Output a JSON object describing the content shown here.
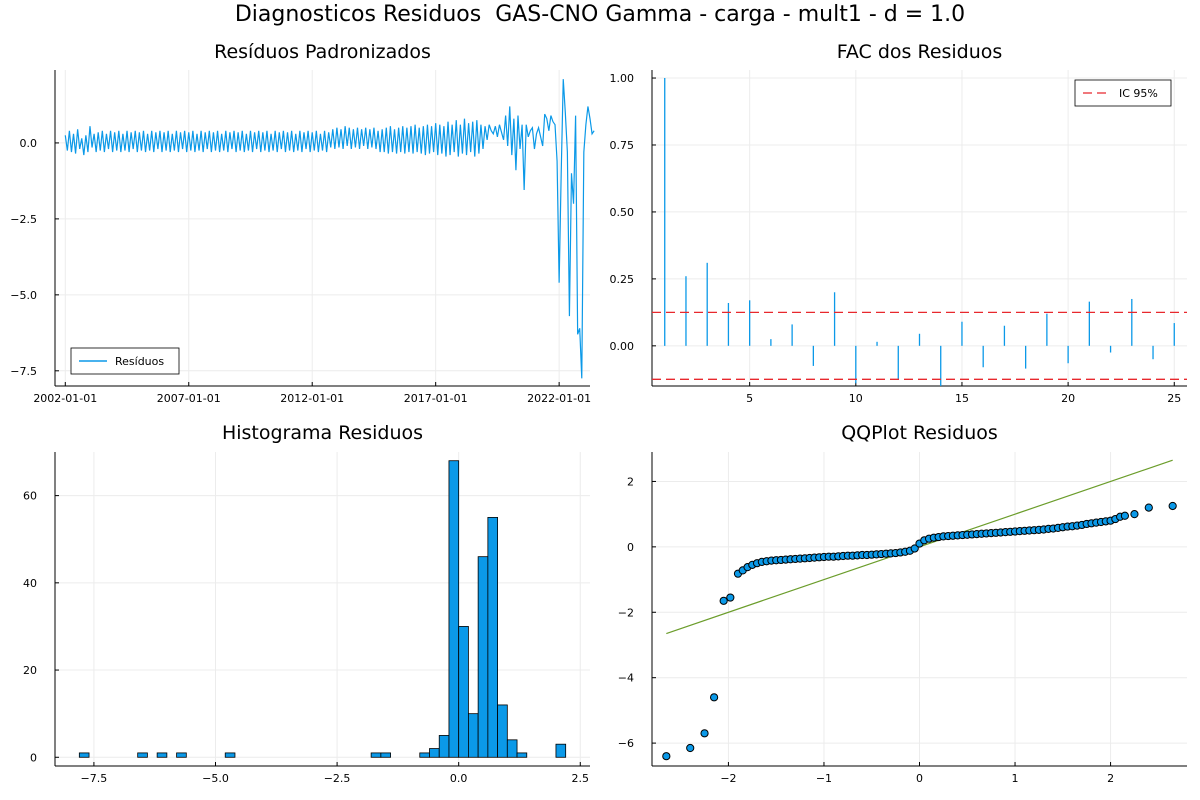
{
  "suptitle": "Diagnosticos Residuos  GAS-CNO Gamma - carga - mult1 - d = 1.0",
  "colors": {
    "series": "#0b99e8",
    "ic": "#e8282d",
    "qqline": "#6b9d2b",
    "grid": "#ececec",
    "axis": "#000000"
  },
  "chart_data": [
    {
      "id": "residuals",
      "type": "line",
      "title": "Resíduos Padronizados",
      "xlabel": "",
      "ylabel": "",
      "xlim": [
        "2001-08-01",
        "2023-04-01"
      ],
      "ylim": [
        -8,
        2.4
      ],
      "x_ticks": [
        "2002-01-01",
        "2007-01-01",
        "2012-01-01",
        "2017-01-01",
        "2022-01-01"
      ],
      "y_ticks": [
        -7.5,
        -5.0,
        -2.5,
        0.0
      ],
      "y_tick_labels": [
        "−7.5",
        "−5.0",
        "−2.5",
        "0.0"
      ],
      "legend": {
        "label": "Resíduos",
        "position": "bottom-left"
      },
      "grid": true,
      "series": [
        {
          "name": "Resíduos",
          "start": "2002-01-01",
          "frequency": "monthly",
          "values": [
            0.25,
            -0.25,
            0.4,
            -0.3,
            0.3,
            -0.35,
            0.45,
            -0.2,
            0.15,
            -0.4,
            0.25,
            -0.3,
            0.55,
            -0.15,
            0.3,
            -0.3,
            0.35,
            -0.25,
            0.4,
            -0.3,
            0.3,
            -0.2,
            0.4,
            -0.3,
            0.35,
            -0.25,
            0.4,
            -0.3,
            0.3,
            -0.25,
            0.4,
            -0.3,
            0.35,
            -0.2,
            0.4,
            -0.3,
            0.35,
            -0.25,
            0.4,
            -0.3,
            0.3,
            -0.25,
            0.4,
            -0.3,
            0.35,
            -0.2,
            0.4,
            -0.3,
            0.35,
            -0.25,
            0.4,
            -0.3,
            0.3,
            -0.25,
            0.4,
            -0.3,
            0.35,
            -0.2,
            0.4,
            -0.3,
            0.35,
            -0.25,
            0.4,
            -0.3,
            0.3,
            -0.25,
            0.4,
            -0.3,
            0.35,
            -0.2,
            0.4,
            -0.3,
            0.35,
            -0.25,
            0.4,
            -0.3,
            0.3,
            -0.25,
            0.4,
            -0.3,
            0.35,
            -0.2,
            0.4,
            -0.3,
            0.35,
            -0.25,
            0.4,
            -0.3,
            0.3,
            -0.25,
            0.4,
            -0.3,
            0.35,
            -0.2,
            0.4,
            -0.3,
            0.35,
            -0.25,
            0.4,
            -0.3,
            0.3,
            -0.25,
            0.4,
            -0.3,
            0.35,
            -0.2,
            0.4,
            -0.3,
            0.35,
            -0.25,
            0.4,
            -0.3,
            0.3,
            -0.25,
            0.4,
            -0.3,
            0.35,
            -0.2,
            0.4,
            -0.3,
            0.35,
            -0.25,
            0.4,
            -0.3,
            0.3,
            -0.25,
            0.4,
            -0.3,
            0.35,
            -0.15,
            0.45,
            -0.2,
            0.5,
            -0.15,
            0.45,
            -0.2,
            0.55,
            -0.1,
            0.5,
            -0.2,
            0.45,
            -0.15,
            0.5,
            -0.2,
            0.45,
            -0.1,
            0.5,
            -0.2,
            0.45,
            -0.15,
            0.5,
            -0.2,
            0.4,
            -0.3,
            0.45,
            -0.3,
            0.5,
            -0.35,
            0.55,
            -0.3,
            0.45,
            -0.35,
            0.5,
            -0.3,
            0.55,
            -0.35,
            0.5,
            -0.3,
            0.55,
            -0.35,
            0.6,
            -0.3,
            0.5,
            -0.35,
            0.55,
            -0.4,
            0.6,
            -0.35,
            0.55,
            -0.3,
            0.65,
            -0.4,
            0.6,
            -0.35,
            0.55,
            -0.45,
            0.7,
            -0.4,
            0.6,
            -0.3,
            0.75,
            -0.45,
            0.6,
            -0.35,
            0.8,
            -0.4,
            0.65,
            -0.3,
            0.7,
            -0.45,
            0.75,
            -0.35,
            0.6,
            -0.2,
            0.55,
            0.1,
            0.6,
            0.4,
            0.3,
            0.55,
            0.2,
            0.6,
            0.35,
            0.1,
            0.9,
            -0.1,
            1.2,
            -0.4,
            0.8,
            -0.9,
            0.9,
            -0.2,
            0.6,
            -1.55,
            0.6,
            0.2,
            0.4,
            0.5,
            -0.2,
            0.3,
            0.5,
            0.2,
            -0.1,
            0.95,
            0.8,
            0.4,
            0.9,
            0.7,
            0.6,
            -0.6,
            -4.6,
            -1.0,
            2.1,
            1.0,
            -0.3,
            -5.7,
            -1.0,
            -2.0,
            0.9,
            -6.3,
            -6.1,
            -7.75,
            -0.3,
            0.6,
            1.2,
            0.8,
            0.3,
            0.4
          ]
        }
      ]
    },
    {
      "id": "acf",
      "type": "bar",
      "title": "FAC dos Residuos",
      "xlabel": "",
      "ylabel": "",
      "xlim": [
        0.4,
        25.6
      ],
      "ylim": [
        -0.15,
        1.03
      ],
      "x_ticks": [
        5,
        10,
        15,
        20,
        25
      ],
      "y_ticks": [
        0.0,
        0.25,
        0.5,
        0.75,
        1.0
      ],
      "y_tick_labels": [
        "0.00",
        "0.25",
        "0.50",
        "0.75",
        "1.00"
      ],
      "legend": {
        "label": "IC 95%",
        "position": "top-right"
      },
      "grid": true,
      "lags": [
        1,
        2,
        3,
        4,
        5,
        6,
        7,
        8,
        9,
        10,
        11,
        12,
        13,
        14,
        15,
        16,
        17,
        18,
        19,
        20,
        21,
        22,
        23,
        24,
        25
      ],
      "values": [
        1.0,
        0.26,
        0.31,
        0.16,
        0.17,
        0.025,
        0.08,
        -0.075,
        0.2,
        -0.14,
        0.015,
        -0.125,
        0.045,
        -0.15,
        0.09,
        -0.08,
        0.075,
        -0.085,
        0.12,
        -0.065,
        0.165,
        -0.025,
        0.175,
        -0.05,
        0.085
      ],
      "ci": 0.125
    },
    {
      "id": "histogram",
      "type": "bar",
      "title": "Histograma Residuos",
      "xlabel": "",
      "ylabel": "",
      "xlim": [
        -8.3,
        2.7
      ],
      "ylim": [
        -2,
        70
      ],
      "x_ticks": [
        -7.5,
        -5.0,
        -2.5,
        0.0,
        2.5
      ],
      "x_tick_labels": [
        "−7.5",
        "−5.0",
        "−2.5",
        "0.0",
        "2.5"
      ],
      "y_ticks": [
        0,
        20,
        40,
        60
      ],
      "y_tick_labels": [
        "0",
        "20",
        "40",
        "60"
      ],
      "grid": true,
      "bin_width": 0.2,
      "bin_starts": [
        -7.8,
        -6.6,
        -6.2,
        -5.8,
        -4.8,
        -1.8,
        -1.6,
        -0.8,
        -0.6,
        -0.4,
        -0.2,
        0.0,
        0.2,
        0.4,
        0.6,
        0.8,
        1.0,
        1.2,
        2.0
      ],
      "counts": [
        1,
        1,
        1,
        1,
        1,
        1,
        1,
        1,
        2,
        5,
        68,
        30,
        10,
        46,
        55,
        12,
        4,
        1,
        3
      ]
    },
    {
      "id": "qqplot",
      "type": "scatter",
      "title": "QQPlot Residuos",
      "xlabel": "",
      "ylabel": "",
      "xlim": [
        -2.8,
        2.8
      ],
      "ylim": [
        -6.7,
        2.9
      ],
      "x_ticks": [
        -2,
        -1,
        0,
        1,
        2
      ],
      "x_tick_labels": [
        "−2",
        "−1",
        "0",
        "1",
        "2"
      ],
      "y_ticks": [
        -6,
        -4,
        -2,
        0,
        2
      ],
      "y_tick_labels": [
        "−6",
        "−4",
        "−2",
        "0",
        "2"
      ],
      "grid": true,
      "reference_line": {
        "x": [
          -2.65,
          2.65
        ],
        "y": [
          -2.65,
          2.65
        ]
      },
      "points": {
        "x": [
          -2.65,
          -2.4,
          -2.25,
          -2.15,
          -2.05,
          -1.98,
          -1.9,
          -1.85,
          -1.8,
          -1.75,
          -1.7,
          -1.65,
          -1.6,
          -1.55,
          -1.5,
          -1.45,
          -1.4,
          -1.35,
          -1.3,
          -1.25,
          -1.2,
          -1.15,
          -1.1,
          -1.05,
          -1.0,
          -0.95,
          -0.9,
          -0.85,
          -0.8,
          -0.75,
          -0.7,
          -0.65,
          -0.6,
          -0.55,
          -0.5,
          -0.45,
          -0.4,
          -0.35,
          -0.3,
          -0.25,
          -0.2,
          -0.15,
          -0.1,
          -0.05,
          0.0,
          0.05,
          0.1,
          0.15,
          0.2,
          0.25,
          0.3,
          0.35,
          0.4,
          0.45,
          0.5,
          0.55,
          0.6,
          0.65,
          0.7,
          0.75,
          0.8,
          0.85,
          0.9,
          0.95,
          1.0,
          1.05,
          1.1,
          1.15,
          1.2,
          1.25,
          1.3,
          1.35,
          1.4,
          1.45,
          1.5,
          1.55,
          1.6,
          1.65,
          1.7,
          1.75,
          1.8,
          1.85,
          1.9,
          1.95,
          2.0,
          2.05,
          2.1,
          2.15,
          2.25,
          2.4,
          2.65
        ],
        "y": [
          -6.4,
          -6.15,
          -5.7,
          -4.6,
          -1.65,
          -1.55,
          -0.82,
          -0.72,
          -0.62,
          -0.55,
          -0.5,
          -0.46,
          -0.44,
          -0.42,
          -0.41,
          -0.4,
          -0.39,
          -0.38,
          -0.37,
          -0.36,
          -0.35,
          -0.34,
          -0.33,
          -0.32,
          -0.31,
          -0.3,
          -0.3,
          -0.29,
          -0.28,
          -0.27,
          -0.27,
          -0.26,
          -0.25,
          -0.25,
          -0.24,
          -0.23,
          -0.22,
          -0.21,
          -0.2,
          -0.19,
          -0.17,
          -0.15,
          -0.12,
          -0.05,
          0.1,
          0.2,
          0.25,
          0.28,
          0.3,
          0.32,
          0.33,
          0.34,
          0.35,
          0.36,
          0.37,
          0.38,
          0.39,
          0.4,
          0.41,
          0.42,
          0.43,
          0.44,
          0.45,
          0.46,
          0.47,
          0.48,
          0.49,
          0.5,
          0.51,
          0.52,
          0.53,
          0.55,
          0.56,
          0.58,
          0.6,
          0.62,
          0.63,
          0.65,
          0.67,
          0.7,
          0.72,
          0.74,
          0.76,
          0.78,
          0.8,
          0.85,
          0.92,
          0.95,
          1.0,
          1.2,
          1.25
        ]
      }
    }
  ]
}
